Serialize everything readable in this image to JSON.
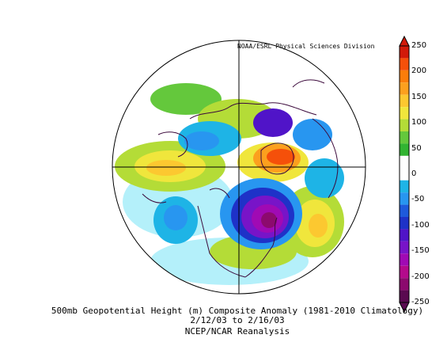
{
  "credit": "NOAA/ESRL Physical Sciences Division",
  "title": "500mb Geopotential Height (m) Composite Anomaly (1981-2010 Climatology)",
  "dates": "2/12/03  to 2/16/03",
  "source": "NCEP/NCAR Reanalysis",
  "colorbar": {
    "ticks": [
      "250",
      "200",
      "150",
      "100",
      "50",
      "0",
      "-50",
      "-100",
      "-150",
      "-200",
      "-250"
    ],
    "colors": [
      "#d21a0a",
      "#f5500a",
      "#fa7d0a",
      "#fca01e",
      "#fcc830",
      "#f0e63c",
      "#b4dc37",
      "#64c83c",
      "#32b432",
      "#ffffff",
      "#ffffff",
      "#1eb4e6",
      "#2896f0",
      "#1e5adc",
      "#1e32c8",
      "#5014c8",
      "#7814c8",
      "#a00ab4",
      "#b40a8c",
      "#8c0a6e",
      "#5a0a50"
    ]
  }
}
